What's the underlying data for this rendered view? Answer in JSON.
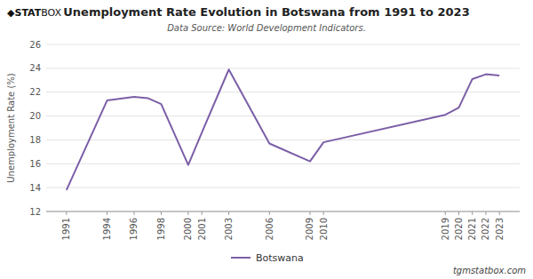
{
  "chart_data": {
    "type": "line",
    "title": "Unemployment Rate Evolution in Botswana from 1991 to 2023",
    "subtitle": "Data Source: World Development Indicators.",
    "y_label": "Unemployment Rate (%)",
    "annotations": [
      "◆",
      "STAT",
      "BOX",
      "tgmstatbox.com"
    ],
    "x": [
      1991,
      1994,
      1996,
      1997,
      1998,
      2000,
      2001,
      2003,
      2006,
      2009,
      2010,
      2019,
      2020,
      2021,
      2022,
      2023
    ],
    "series": [
      {
        "name": "Botswana",
        "color": "#7B5EA7",
        "values": [
          13.8,
          21.3,
          21.6,
          21.5,
          21.0,
          15.9,
          18.6,
          23.9,
          17.7,
          16.2,
          17.8,
          20.1,
          20.7,
          23.1,
          23.5,
          23.4
        ]
      }
    ],
    "xlim": [
      1989.5,
      2024.5
    ],
    "xticks": [
      1991,
      1994,
      1996,
      1998,
      2000,
      2001,
      2003,
      2006,
      2009,
      2010,
      2019,
      2020,
      2021,
      2022,
      2023
    ],
    "ylim": [
      12,
      26
    ],
    "yticks": [
      12,
      14,
      16,
      18,
      20,
      22,
      24,
      26
    ],
    "grid": true,
    "legend": "bottom"
  }
}
